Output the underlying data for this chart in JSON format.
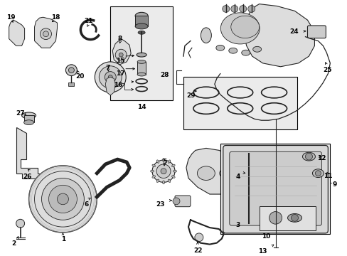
{
  "bg_color": "#ffffff",
  "fig_width": 4.89,
  "fig_height": 3.6,
  "dpi": 100,
  "lc": "#222222",
  "fc_light": "#e8e8e8",
  "fc_box": "#e0e0e0",
  "fs": 6.5
}
